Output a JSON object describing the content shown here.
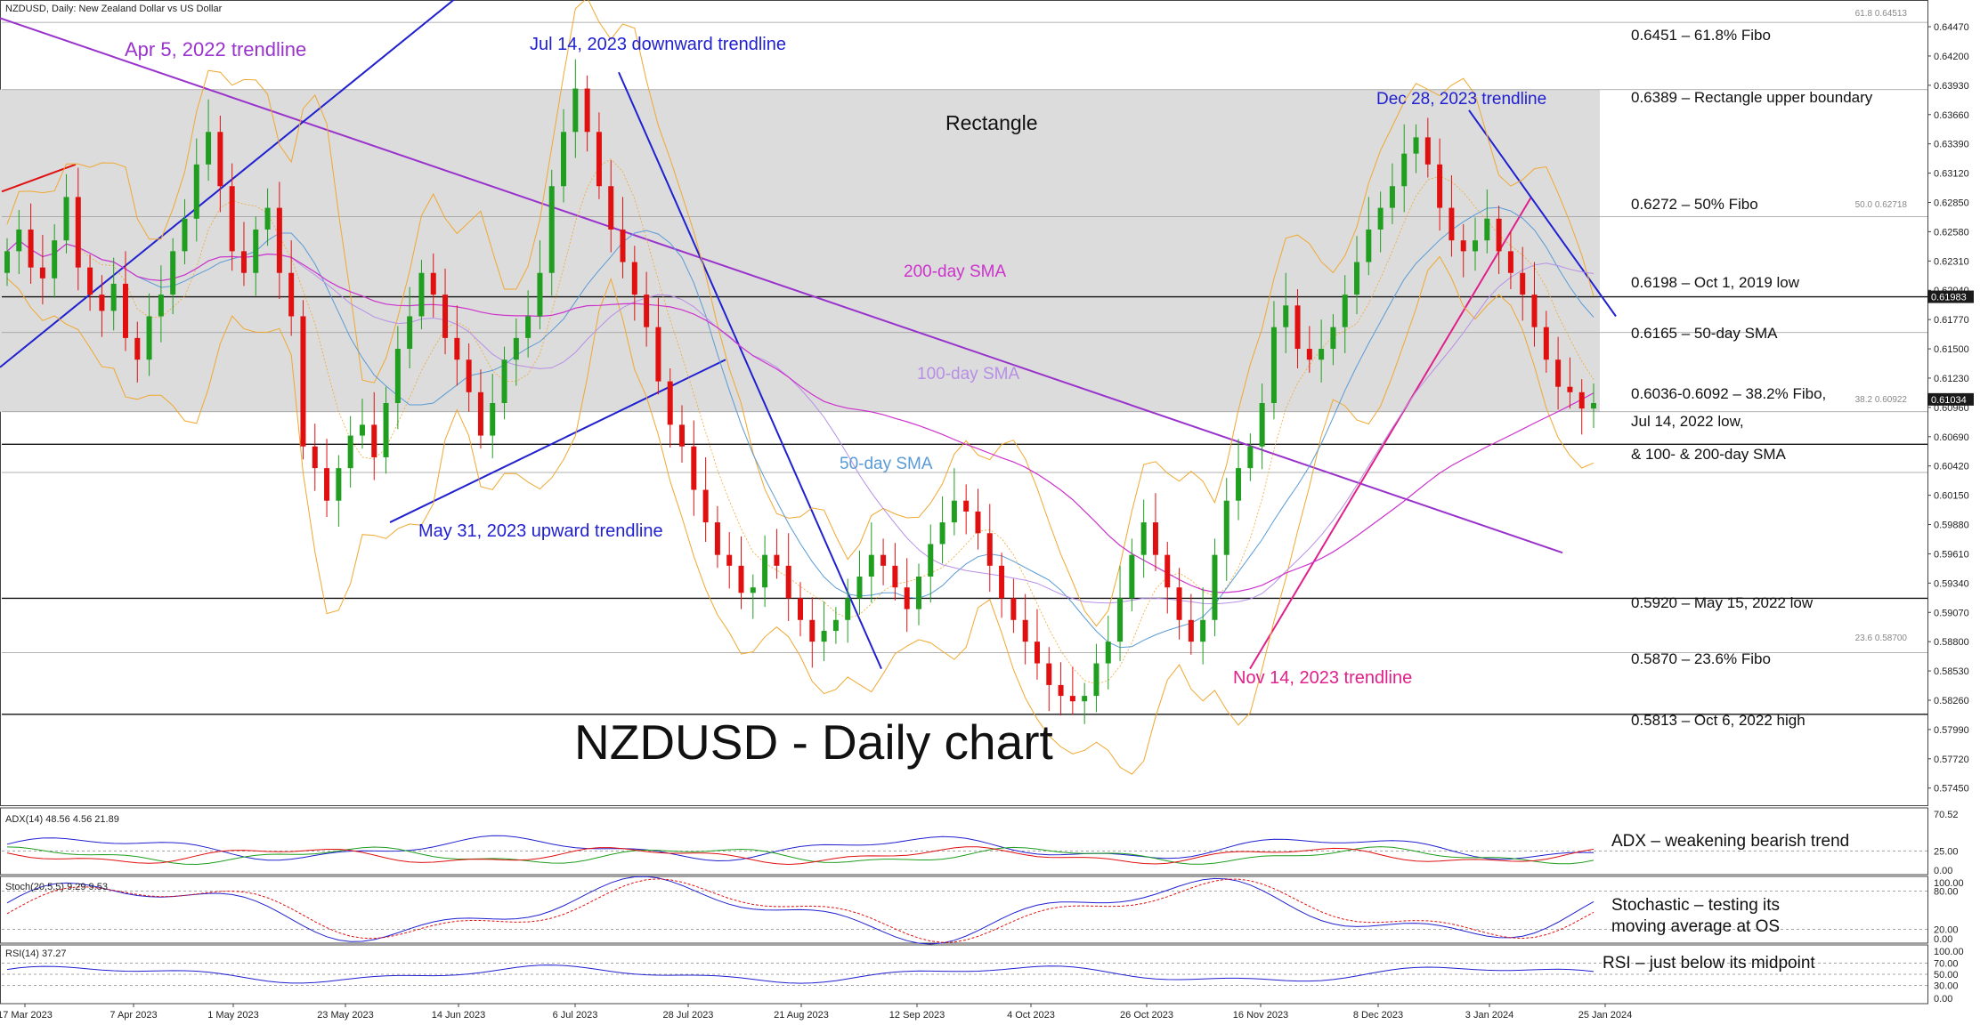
{
  "header": {
    "text": "NZDUSD, Daily:  New Zealand Dollar vs US Dollar"
  },
  "colors": {
    "bull": "#1f9e1f",
    "bear": "#e01010",
    "rect_fill": "#dcdcdc",
    "sma50": "#5a9bd5",
    "sma100": "#b78fe6",
    "sma200": "#cc33cc",
    "bollinger": "#f0a830",
    "trend_blue": "#2020d0",
    "trend_purple": "#9933cc",
    "trend_pink": "#e0208a",
    "trend_red": "#e01010"
  },
  "chart_data": [
    {
      "type": "candlestick",
      "title": "NZDUSD - Daily chart",
      "ylim": [
        0.573,
        0.647
      ],
      "y_ticks": [
        0.6447,
        0.642,
        0.6393,
        0.6366,
        0.6339,
        0.6312,
        0.6285,
        0.6258,
        0.6231,
        0.6204,
        0.6177,
        0.615,
        0.6123,
        0.6096,
        0.6069,
        0.6042,
        0.6015,
        0.5988,
        0.5961,
        0.5934,
        0.5907,
        0.588,
        0.5853,
        0.5826,
        0.5799,
        0.5772,
        0.5745
      ],
      "y_tick_labels": [
        "0.64470",
        "0.64200",
        "0.63930",
        "0.63660",
        "0.63390",
        "0.63120",
        "0.62850",
        "0.62580",
        "0.62310",
        "0.62040",
        "0.61770",
        "0.61500",
        "0.61230",
        "0.60960",
        "0.60690",
        "0.60420",
        "0.60150",
        "0.59880",
        "0.59610",
        "0.59340",
        "0.59070",
        "0.58800",
        "0.58530",
        "0.58260",
        "0.57990",
        "0.57720",
        "0.57450"
      ],
      "x_labels": [
        "17 Mar 2023",
        "7 Apr 2023",
        "1 May 2023",
        "23 May 2023",
        "14 Jun 2023",
        "6 Jul 2023",
        "28 Jul 2023",
        "21 Aug 2023",
        "12 Sep 2023",
        "4 Oct 2023",
        "26 Oct 2023",
        "16 Nov 2023",
        "8 Dec 2023",
        "3 Jan 2024",
        "25 Jan 2024"
      ],
      "rectangle": [
        0.6092,
        0.6389
      ],
      "price_levels": [
        {
          "value": 0.6451,
          "label": "0.6451 – 61.8% Fibo",
          "tag": "61.8 0.64513"
        },
        {
          "value": 0.6389,
          "label": "0.6389 – Rectangle upper boundary"
        },
        {
          "value": 0.6272,
          "label": "0.6272 – 50% Fibo",
          "tag": "50.0 0.62718"
        },
        {
          "value": 0.6198,
          "label": "0.6198 – Oct 1, 2019 low",
          "tag": "0.61983"
        },
        {
          "value": 0.6165,
          "label": "0.6165 – 50-day SMA"
        },
        {
          "value": 0.6092,
          "label": "0.6036-0.6092 – 38.2% Fibo,",
          "tag": "38.2 0.60922"
        },
        {
          "value": 0.6062,
          "label": "Jul 14, 2022 low,"
        },
        {
          "value": 0.6036,
          "label": "& 100- & 200-day SMA"
        },
        {
          "value": 0.592,
          "label": "0.5920 – May 15, 2022 low"
        },
        {
          "value": 0.587,
          "label": "0.5870 – 23.6% Fibo",
          "tag": "23.6 0.58700"
        },
        {
          "value": 0.5813,
          "label": "0.5813 – Oct 6, 2022 high"
        }
      ],
      "current_price_tag": "0.61034",
      "annotations": [
        {
          "text": "Apr 5, 2022 trendline",
          "color": "#9933cc"
        },
        {
          "text": "Jul 14, 2023 downward trendline",
          "color": "#2020d0"
        },
        {
          "text": "Rectangle",
          "color": "#111111"
        },
        {
          "text": "Dec 28, 2023 trendline",
          "color": "#2020d0"
        },
        {
          "text": "200-day SMA",
          "color": "#cc33cc"
        },
        {
          "text": "100-day SMA",
          "color": "#b78fe6"
        },
        {
          "text": "50-day SMA",
          "color": "#5a9bd5"
        },
        {
          "text": "May 31, 2023 upward trendline",
          "color": "#2020d0"
        },
        {
          "text": "Nov 14, 2023 trendline",
          "color": "#e0208a"
        }
      ],
      "ohlc_close_path": [
        0.624,
        0.626,
        0.6225,
        0.6215,
        0.625,
        0.629,
        0.6225,
        0.62,
        0.6185,
        0.621,
        0.616,
        0.614,
        0.618,
        0.62,
        0.624,
        0.627,
        0.632,
        0.635,
        0.63,
        0.624,
        0.622,
        0.626,
        0.628,
        0.622,
        0.618,
        0.606,
        0.604,
        0.601,
        0.604,
        0.607,
        0.608,
        0.605,
        0.61,
        0.615,
        0.618,
        0.622,
        0.62,
        0.616,
        0.614,
        0.611,
        0.607,
        0.61,
        0.614,
        0.616,
        0.618,
        0.622,
        0.63,
        0.635,
        0.639,
        0.635,
        0.63,
        0.626,
        0.623,
        0.62,
        0.617,
        0.612,
        0.608,
        0.606,
        0.602,
        0.599,
        0.596,
        0.595,
        0.5925,
        0.593,
        0.596,
        0.595,
        0.592,
        0.59,
        0.588,
        0.589,
        0.59,
        0.592,
        0.594,
        0.596,
        0.595,
        0.593,
        0.591,
        0.594,
        0.597,
        0.599,
        0.601,
        0.6,
        0.598,
        0.595,
        0.592,
        0.59,
        0.588,
        0.586,
        0.584,
        0.583,
        0.5825,
        0.583,
        0.586,
        0.588,
        0.592,
        0.596,
        0.599,
        0.596,
        0.593,
        0.59,
        0.588,
        0.59,
        0.596,
        0.601,
        0.604,
        0.606,
        0.61,
        0.617,
        0.619,
        0.615,
        0.614,
        0.615,
        0.617,
        0.62,
        0.623,
        0.626,
        0.628,
        0.63,
        0.633,
        0.6345,
        0.632,
        0.628,
        0.625,
        0.624,
        0.625,
        0.627,
        0.624,
        0.622,
        0.62,
        0.617,
        0.614,
        0.6115,
        0.611,
        0.6095,
        0.61
      ],
      "series_labels": [
        "200-day SMA",
        "100-day SMA",
        "50-day SMA"
      ]
    },
    {
      "type": "line",
      "name": "adx",
      "header": "ADX(14) 48.56 4.56 21.89",
      "ylim": [
        0,
        70.52
      ],
      "y_tick_labels": [
        "70.52",
        "25.00",
        "0.00"
      ],
      "note": "ADX – weakening bearish trend"
    },
    {
      "type": "line",
      "name": "stochastic",
      "header": "Stoch(20,5,5) 9.29 9.53",
      "ylim": [
        0,
        100
      ],
      "y_tick_labels": [
        "100.00",
        "80.00",
        "20.00",
        "0.00"
      ],
      "note_lines": [
        "Stochastic – testing its",
        "moving average at OS"
      ]
    },
    {
      "type": "line",
      "name": "rsi",
      "header": "RSI(14) 37.27",
      "ylim": [
        0,
        100
      ],
      "y_tick_labels": [
        "100.00",
        "70.00",
        "50.00",
        "30.00",
        "0.00"
      ],
      "note": "RSI – just below its midpoint"
    }
  ]
}
